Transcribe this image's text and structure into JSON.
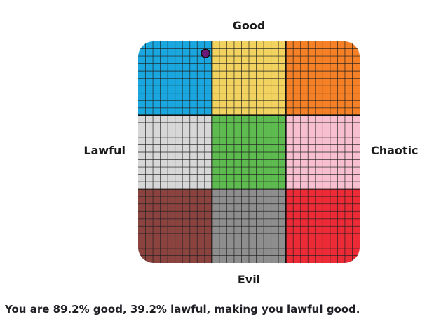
{
  "chart_data": {
    "type": "scatter",
    "labels": {
      "top": "Good",
      "bottom": "Evil",
      "left": "Lawful",
      "right": "Chaotic"
    },
    "grid": true,
    "cells_per_region": 10,
    "regions": [
      {
        "name": "lawful-good",
        "color": "#1aa7df"
      },
      {
        "name": "neutral-good",
        "color": "#f2d35f"
      },
      {
        "name": "chaotic-good",
        "color": "#f58025"
      },
      {
        "name": "lawful-neutral",
        "color": "#d7d7d7"
      },
      {
        "name": "true-neutral",
        "color": "#5ebb4f"
      },
      {
        "name": "chaotic-neutral",
        "color": "#f7bfd0"
      },
      {
        "name": "lawful-evil",
        "color": "#8b4340"
      },
      {
        "name": "neutral-evil",
        "color": "#8e8e8e"
      },
      {
        "name": "chaotic-evil",
        "color": "#ec2b37"
      }
    ],
    "point": {
      "good_percent": 89.2,
      "lawful_percent": 39.2,
      "color": "#6a1b7a"
    }
  },
  "result": {
    "text": "You are 89.2% good, 39.2% lawful, making you lawful good."
  }
}
